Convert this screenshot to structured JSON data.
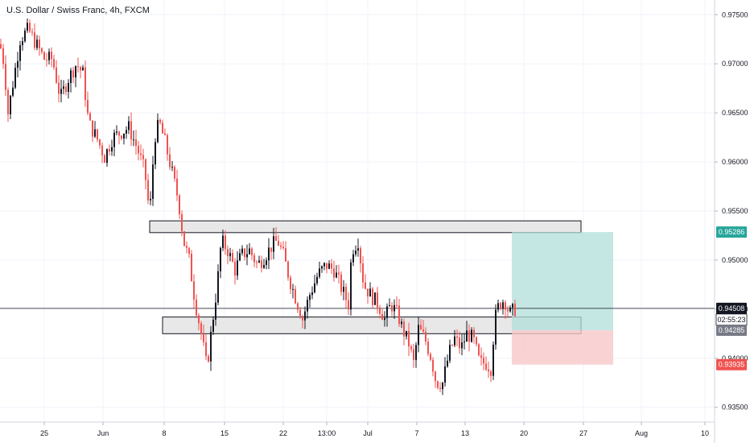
{
  "header": {
    "title": "U.S. Dollar / Swiss Franc, 4h, FXCM"
  },
  "colors": {
    "up_candle": "#131722",
    "down_candle": "#ef5350",
    "grid": "#f0f3fa",
    "zone_fill": "#e8e8e8",
    "zone_border": "#131722",
    "profit_fill": "#b2dfdb",
    "loss_fill": "#f8c8c8",
    "target_tag": "#26a69a",
    "current_tag": "#131722",
    "entry_tag": "#787b86",
    "stop_tag": "#ef5350"
  },
  "chart_data": {
    "type": "candlestick",
    "instrument": "U.S. Dollar / Swiss Franc",
    "timeframe": "4h",
    "source": "FXCM",
    "ylim": [
      0.9335,
      0.9765
    ],
    "y_ticks": [
      "0.97500",
      "0.97000",
      "0.96500",
      "0.96000",
      "0.95500",
      "0.95000",
      "0.94500",
      "0.94000",
      "0.93500"
    ],
    "y_tick_values": [
      0.975,
      0.97,
      0.965,
      0.96,
      0.955,
      0.95,
      0.945,
      0.94,
      0.935
    ],
    "x_ticks": [
      "25",
      "Jun",
      "8",
      "15",
      "22",
      "13:00",
      "Jul",
      "7",
      "13",
      "20",
      "27",
      "Aug",
      "10"
    ],
    "price_path": [
      {
        "t": 0,
        "p": 0.972
      },
      {
        "t": 5,
        "p": 0.97
      },
      {
        "t": 10,
        "p": 0.965
      },
      {
        "t": 18,
        "p": 0.969
      },
      {
        "t": 25,
        "p": 0.9725
      },
      {
        "t": 35,
        "p": 0.9735
      },
      {
        "t": 45,
        "p": 0.972
      },
      {
        "t": 55,
        "p": 0.9705
      },
      {
        "t": 65,
        "p": 0.9705
      },
      {
        "t": 75,
        "p": 0.9665
      },
      {
        "t": 85,
        "p": 0.9685
      },
      {
        "t": 95,
        "p": 0.97
      },
      {
        "t": 103,
        "p": 0.969
      },
      {
        "t": 110,
        "p": 0.964
      },
      {
        "t": 120,
        "p": 0.9625
      },
      {
        "t": 130,
        "p": 0.9605
      },
      {
        "t": 140,
        "p": 0.9625
      },
      {
        "t": 150,
        "p": 0.963
      },
      {
        "t": 160,
        "p": 0.9635
      },
      {
        "t": 170,
        "p": 0.9615
      },
      {
        "t": 180,
        "p": 0.959
      },
      {
        "t": 186,
        "p": 0.9545
      },
      {
        "t": 192,
        "p": 0.9625
      },
      {
        "t": 198,
        "p": 0.964
      },
      {
        "t": 205,
        "p": 0.962
      },
      {
        "t": 215,
        "p": 0.9585
      },
      {
        "t": 222,
        "p": 0.956
      },
      {
        "t": 228,
        "p": 0.952
      },
      {
        "t": 235,
        "p": 0.95
      },
      {
        "t": 242,
        "p": 0.946
      },
      {
        "t": 250,
        "p": 0.9425
      },
      {
        "t": 257,
        "p": 0.939
      },
      {
        "t": 263,
        "p": 0.943
      },
      {
        "t": 270,
        "p": 0.9475
      },
      {
        "t": 275,
        "p": 0.952
      },
      {
        "t": 283,
        "p": 0.951
      },
      {
        "t": 292,
        "p": 0.949
      },
      {
        "t": 300,
        "p": 0.9505
      },
      {
        "t": 310,
        "p": 0.951
      },
      {
        "t": 320,
        "p": 0.9495
      },
      {
        "t": 330,
        "p": 0.9505
      },
      {
        "t": 338,
        "p": 0.9515
      },
      {
        "t": 345,
        "p": 0.952
      },
      {
        "t": 352,
        "p": 0.9505
      },
      {
        "t": 360,
        "p": 0.948
      },
      {
        "t": 368,
        "p": 0.946
      },
      {
        "t": 376,
        "p": 0.944
      },
      {
        "t": 385,
        "p": 0.9465
      },
      {
        "t": 395,
        "p": 0.9485
      },
      {
        "t": 405,
        "p": 0.9495
      },
      {
        "t": 415,
        "p": 0.949
      },
      {
        "t": 425,
        "p": 0.947
      },
      {
        "t": 433,
        "p": 0.9455
      },
      {
        "t": 437,
        "p": 0.951
      },
      {
        "t": 445,
        "p": 0.952
      },
      {
        "t": 452,
        "p": 0.9475
      },
      {
        "t": 460,
        "p": 0.9465
      },
      {
        "t": 470,
        "p": 0.9455
      },
      {
        "t": 478,
        "p": 0.944
      },
      {
        "t": 486,
        "p": 0.9455
      },
      {
        "t": 494,
        "p": 0.9445
      },
      {
        "t": 500,
        "p": 0.943
      },
      {
        "t": 508,
        "p": 0.9415
      },
      {
        "t": 514,
        "p": 0.9395
      },
      {
        "t": 520,
        "p": 0.943
      },
      {
        "t": 528,
        "p": 0.942
      },
      {
        "t": 536,
        "p": 0.94
      },
      {
        "t": 542,
        "p": 0.9375
      },
      {
        "t": 550,
        "p": 0.9375
      },
      {
        "t": 558,
        "p": 0.9405
      },
      {
        "t": 565,
        "p": 0.942
      },
      {
        "t": 573,
        "p": 0.941
      },
      {
        "t": 580,
        "p": 0.9425
      },
      {
        "t": 588,
        "p": 0.942
      },
      {
        "t": 596,
        "p": 0.9395
      },
      {
        "t": 604,
        "p": 0.9395
      },
      {
        "t": 610,
        "p": 0.939
      },
      {
        "t": 615,
        "p": 0.944
      },
      {
        "t": 620,
        "p": 0.9455
      },
      {
        "t": 627,
        "p": 0.946
      },
      {
        "t": 633,
        "p": 0.9445
      },
      {
        "t": 640,
        "p": 0.945
      }
    ],
    "zones": [
      {
        "name": "resistance-zone",
        "from": 186,
        "to": 722,
        "top": 0.954,
        "bottom": 0.9528
      },
      {
        "name": "support-zone",
        "from": 202,
        "to": 722,
        "top": 0.9442,
        "bottom": 0.9425
      }
    ],
    "position": {
      "from": 636,
      "to": 762,
      "target": 0.95286,
      "entry": 0.94285,
      "stop": 0.93935
    },
    "current_price": 0.94508,
    "price_tags": {
      "target": "0.95286",
      "current": "0.94508",
      "countdown": "02:55:23",
      "entry": "0.94285",
      "stop": "0.93935"
    }
  }
}
